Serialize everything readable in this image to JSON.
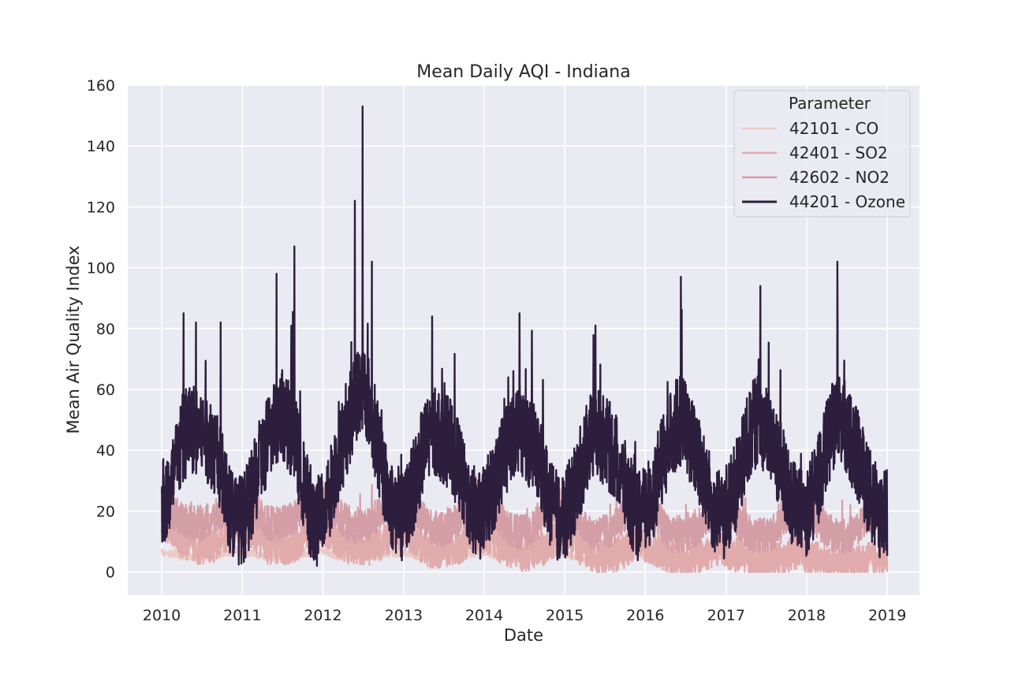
{
  "chart_data": {
    "type": "line",
    "title": "Mean Daily AQI - Indiana",
    "xlabel": "Date",
    "ylabel": "Mean Air Quality Index",
    "xlim": [
      "2009-07-31",
      "2019-05-27"
    ],
    "ylim": [
      -7.6,
      160
    ],
    "x_ticks": [
      "2010",
      "2011",
      "2012",
      "2013",
      "2014",
      "2015",
      "2016",
      "2017",
      "2018",
      "2019"
    ],
    "y_ticks": [
      0,
      20,
      40,
      60,
      80,
      100,
      120,
      140,
      160
    ],
    "grid": true,
    "legend": {
      "title": "Parameter",
      "position": "top-right"
    },
    "x_range": [
      "2010-01-01",
      "2019-01-01"
    ],
    "series": [
      {
        "name": "42101 - CO",
        "color": "#ebcac6",
        "monthly_mean": [
          6,
          6,
          6,
          5,
          5,
          5,
          5,
          5,
          5,
          6,
          6,
          7,
          7,
          6,
          6,
          5,
          5,
          5,
          5,
          5,
          5,
          6,
          6,
          7,
          7,
          6,
          5,
          5,
          5,
          5,
          5,
          5,
          5,
          6,
          6,
          6,
          6,
          6,
          5,
          5,
          5,
          5,
          5,
          5,
          5,
          6,
          6,
          6,
          6,
          6,
          5,
          5,
          4,
          4,
          4,
          4,
          5,
          5,
          6,
          6,
          6,
          5,
          5,
          4,
          4,
          4,
          4,
          4,
          4,
          5,
          5,
          6,
          5,
          5,
          4,
          4,
          4,
          3,
          3,
          3,
          4,
          4,
          5,
          5,
          5,
          4,
          4,
          3,
          3,
          3,
          3,
          3,
          3,
          4,
          4,
          5,
          4,
          4,
          3,
          3,
          3,
          3,
          3,
          3,
          3,
          3,
          4,
          4
        ],
        "range_low": 2,
        "range_high": 10
      },
      {
        "name": "42401 - SO2",
        "color": "#e1aaab",
        "monthly_mean": [
          16,
          15,
          13,
          10,
          9,
          8,
          8,
          8,
          9,
          11,
          13,
          15,
          15,
          14,
          12,
          10,
          8,
          8,
          8,
          8,
          9,
          11,
          13,
          15,
          14,
          13,
          11,
          9,
          8,
          8,
          8,
          8,
          9,
          10,
          12,
          13,
          13,
          12,
          10,
          8,
          7,
          7,
          7,
          7,
          8,
          9,
          11,
          12,
          12,
          11,
          9,
          8,
          7,
          6,
          6,
          6,
          7,
          8,
          10,
          11,
          11,
          10,
          8,
          7,
          6,
          5,
          5,
          5,
          6,
          7,
          9,
          10,
          9,
          8,
          7,
          6,
          5,
          4,
          4,
          4,
          5,
          6,
          7,
          8,
          7,
          6,
          5,
          4,
          4,
          3,
          3,
          3,
          4,
          5,
          6,
          7,
          5,
          5,
          4,
          3,
          3,
          3,
          3,
          3,
          3,
          4,
          5,
          5
        ],
        "range_low": 0,
        "range_high": 41
      },
      {
        "name": "42602 - NO2",
        "color": "#d49ea6",
        "monthly_mean": [
          22,
          21,
          19,
          17,
          16,
          16,
          16,
          17,
          18,
          20,
          22,
          23,
          23,
          22,
          20,
          18,
          16,
          16,
          16,
          17,
          18,
          21,
          23,
          24,
          24,
          22,
          20,
          17,
          16,
          15,
          15,
          16,
          18,
          21,
          23,
          24,
          24,
          23,
          20,
          17,
          15,
          14,
          14,
          15,
          17,
          20,
          22,
          23,
          23,
          22,
          19,
          16,
          14,
          13,
          13,
          14,
          16,
          19,
          21,
          22,
          22,
          21,
          18,
          15,
          13,
          13,
          13,
          14,
          16,
          19,
          21,
          22,
          21,
          20,
          17,
          14,
          12,
          12,
          12,
          13,
          15,
          18,
          20,
          21,
          21,
          19,
          16,
          14,
          12,
          12,
          12,
          13,
          15,
          18,
          20,
          21,
          20,
          18,
          16,
          14,
          12,
          12,
          12,
          13,
          15,
          18,
          20,
          21
        ],
        "range_low": 3,
        "range_high": 45
      },
      {
        "name": "44201 - Ozone",
        "color": "#2d1e3e",
        "monthly_mean": [
          22,
          25,
          33,
          42,
          48,
          47,
          46,
          44,
          40,
          31,
          22,
          18,
          17,
          22,
          30,
          38,
          44,
          50,
          52,
          48,
          42,
          30,
          21,
          16,
          20,
          26,
          36,
          42,
          50,
          58,
          62,
          55,
          44,
          32,
          23,
          20,
          18,
          25,
          32,
          40,
          45,
          46,
          44,
          42,
          36,
          28,
          22,
          18,
          20,
          26,
          32,
          38,
          45,
          48,
          46,
          42,
          38,
          30,
          22,
          18,
          18,
          24,
          30,
          38,
          44,
          45,
          43,
          40,
          36,
          28,
          22,
          18,
          20,
          25,
          32,
          40,
          46,
          50,
          48,
          42,
          36,
          28,
          22,
          18,
          19,
          25,
          32,
          40,
          48,
          50,
          46,
          42,
          36,
          28,
          22,
          19,
          20,
          25,
          33,
          40,
          48,
          52,
          46,
          42,
          36,
          28,
          22,
          19
        ],
        "range_low": 2,
        "range_high": 153,
        "peaks": [
          {
            "date": "2010-04-10",
            "value": 85
          },
          {
            "date": "2010-06-05",
            "value": 82
          },
          {
            "date": "2010-09-25",
            "value": 82
          },
          {
            "date": "2011-06-05",
            "value": 98
          },
          {
            "date": "2011-08-25",
            "value": 107
          },
          {
            "date": "2012-05-25",
            "value": 122
          },
          {
            "date": "2012-06-29",
            "value": 153
          },
          {
            "date": "2012-08-10",
            "value": 102
          },
          {
            "date": "2013-05-10",
            "value": 84
          },
          {
            "date": "2014-06-10",
            "value": 85
          },
          {
            "date": "2015-05-20",
            "value": 81
          },
          {
            "date": "2016-06-10",
            "value": 97
          },
          {
            "date": "2017-06-05",
            "value": 94
          },
          {
            "date": "2018-05-20",
            "value": 102
          }
        ]
      }
    ]
  }
}
